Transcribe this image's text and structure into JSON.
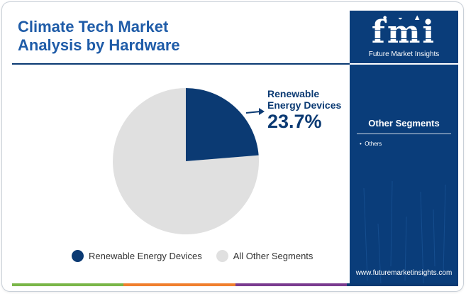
{
  "title_line1": "Climate Tech Market",
  "title_line2": "Analysis by Hardware",
  "chart_data": {
    "type": "pie",
    "title": "Climate Tech Market Analysis by Hardware",
    "segments": [
      {
        "name": "Renewable Energy Devices",
        "value": 23.7,
        "color": "#0b3a73"
      },
      {
        "name": "All Other Segments",
        "value": 76.3,
        "color": "#e0e0e0"
      }
    ],
    "callout": {
      "line1": "Renewable",
      "line2": "Energy Devices",
      "value_label": "23.7%"
    },
    "legend": [
      {
        "label": "Renewable Energy Devices",
        "color": "#0b3a73"
      },
      {
        "label": "All Other Segments",
        "color": "#e0e0e0"
      }
    ],
    "legend_position": "bottom"
  },
  "sidebar": {
    "logo_text": "fmi",
    "logo_sub": "Future Market Insights",
    "segments_title": "Other Segments",
    "segments": [
      "Others"
    ],
    "url": "www.futuremarketinsights.com"
  },
  "colors": {
    "title": "#1f5ca8",
    "navy": "#0b3a73",
    "sidebar_bg": "#0a3d7a",
    "other": "#e0e0e0",
    "bottom_bar": [
      "#7ab648",
      "#f07f2e",
      "#7a3b8f",
      "#0b3a73"
    ]
  },
  "icons": [
    "chart-line-icon",
    "arrow-right-icon"
  ]
}
